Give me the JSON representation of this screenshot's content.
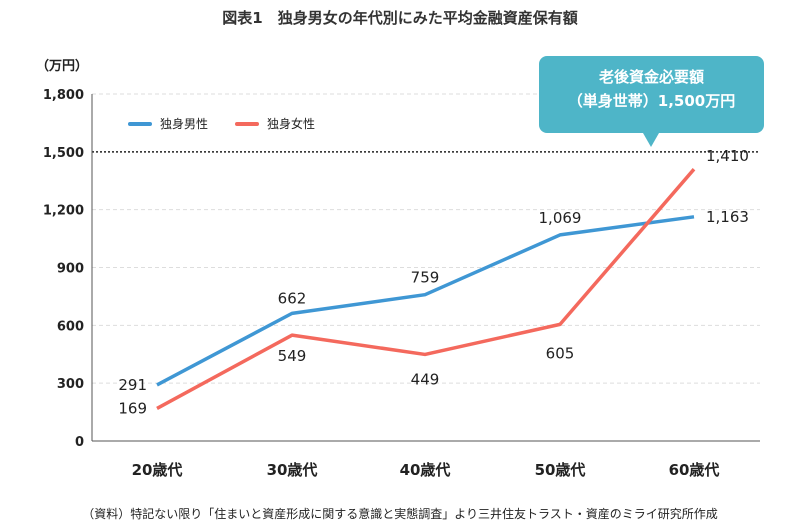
{
  "title": "図表1　独身男女の年代別にみた平均金融資産保有額",
  "unit_label": "（万円）",
  "source_note": "（資料）特記ない限り「住まいと資産形成に関する意識と実態調査」より三井住友トラスト・資産のミライ研究所作成",
  "callout": {
    "line1": "老後資金必要額",
    "line2": "（単身世帯）1,500万円"
  },
  "chart_data": {
    "type": "line",
    "categories": [
      "20歳代",
      "30歳代",
      "40歳代",
      "50歳代",
      "60歳代"
    ],
    "series": [
      {
        "name": "独身男性",
        "color": "#3f97d4",
        "values": [
          291,
          662,
          759,
          1069,
          1163
        ],
        "labels": [
          "291",
          "662",
          "759",
          "1,069",
          "1,163"
        ]
      },
      {
        "name": "独身女性",
        "color": "#f4695d",
        "values": [
          169,
          549,
          449,
          605,
          1410
        ],
        "labels": [
          "169",
          "549",
          "449",
          "605",
          "1,410"
        ]
      }
    ],
    "ylim": [
      0,
      1800
    ],
    "yticks": [
      0,
      300,
      600,
      900,
      1200,
      1500,
      1800
    ],
    "ytick_labels": [
      "0",
      "300",
      "600",
      "900",
      "1,200",
      "1,500",
      "1,800"
    ],
    "reference_line": {
      "value": 1500,
      "style": "dotted"
    },
    "grid": true,
    "legend": "top-left"
  }
}
